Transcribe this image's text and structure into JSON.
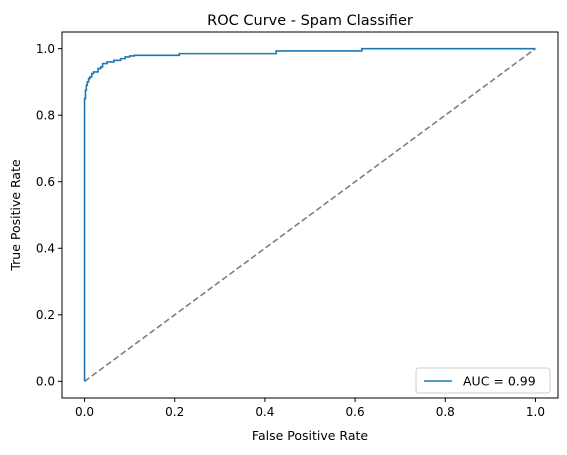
{
  "chart_data": {
    "type": "line",
    "title": "ROC Curve - Spam Classifier",
    "xlabel": "False Positive Rate",
    "ylabel": "True Positive Rate",
    "xlim": [
      -0.05,
      1.05
    ],
    "ylim": [
      -0.05,
      1.05
    ],
    "xticks": [
      "0.0",
      "0.2",
      "0.4",
      "0.6",
      "0.8",
      "1.0"
    ],
    "yticks": [
      "0.0",
      "0.2",
      "0.4",
      "0.6",
      "0.8",
      "1.0"
    ],
    "grid": false,
    "legend_position": "lower right",
    "series": [
      {
        "name": "AUC = 0.99",
        "color": "#1f77b4",
        "style": "solid",
        "x": [
          0.0,
          0.0,
          0.002,
          0.002,
          0.004,
          0.004,
          0.006,
          0.006,
          0.009,
          0.009,
          0.012,
          0.012,
          0.016,
          0.016,
          0.02,
          0.02,
          0.03,
          0.03,
          0.036,
          0.036,
          0.04,
          0.04,
          0.05,
          0.05,
          0.065,
          0.065,
          0.08,
          0.08,
          0.09,
          0.09,
          0.1,
          0.1,
          0.11,
          0.11,
          0.21,
          0.21,
          0.425,
          0.425,
          0.615,
          0.615,
          1.0
        ],
        "y": [
          0.0,
          0.85,
          0.85,
          0.875,
          0.875,
          0.89,
          0.89,
          0.9,
          0.9,
          0.91,
          0.91,
          0.915,
          0.915,
          0.925,
          0.925,
          0.93,
          0.93,
          0.94,
          0.94,
          0.945,
          0.945,
          0.955,
          0.955,
          0.96,
          0.96,
          0.965,
          0.965,
          0.97,
          0.97,
          0.975,
          0.975,
          0.978,
          0.978,
          0.98,
          0.98,
          0.985,
          0.985,
          0.993,
          0.993,
          1.0,
          1.0
        ]
      },
      {
        "name": "",
        "color": "#808080",
        "style": "dashed",
        "x": [
          0,
          1
        ],
        "y": [
          0,
          1
        ]
      }
    ]
  }
}
